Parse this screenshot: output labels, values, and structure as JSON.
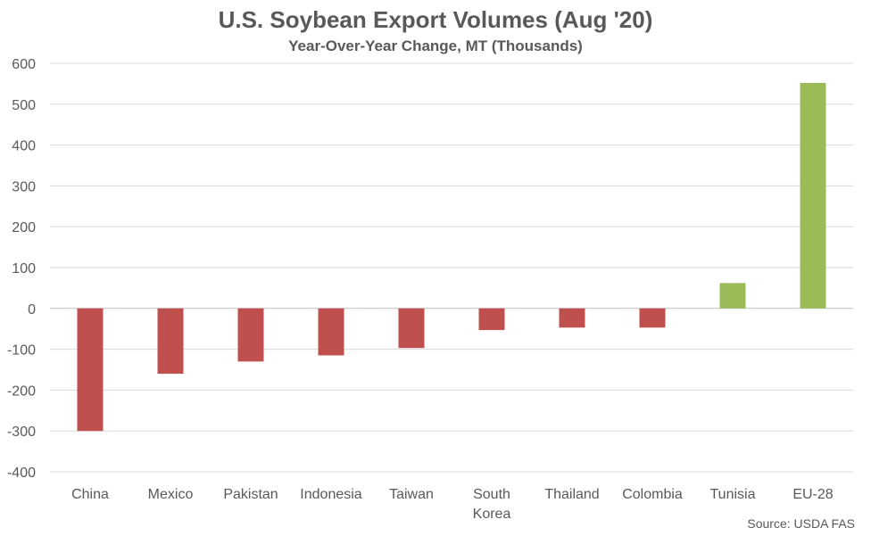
{
  "chart_data": {
    "type": "bar",
    "title": "U.S. Soybean Export Volumes (Aug '20)",
    "subtitle": "Year-Over-Year Change, MT (Thousands)",
    "categories": [
      "China",
      "Mexico",
      "Pakistan",
      "Indonesia",
      "Taiwan",
      "South Korea",
      "Thailand",
      "Colombia",
      "Tunisia",
      "EU-28"
    ],
    "values": [
      -300,
      -160,
      -130,
      -115,
      -97,
      -53,
      -47,
      -47,
      62,
      552
    ],
    "ylim": [
      -400,
      600
    ],
    "yticks": [
      600,
      500,
      400,
      300,
      200,
      100,
      0,
      -100,
      -200,
      -300,
      -400
    ],
    "grid": true,
    "colors": {
      "positive": "#9bbb59",
      "negative": "#c0504d"
    },
    "source": "Source: USDA FAS"
  }
}
